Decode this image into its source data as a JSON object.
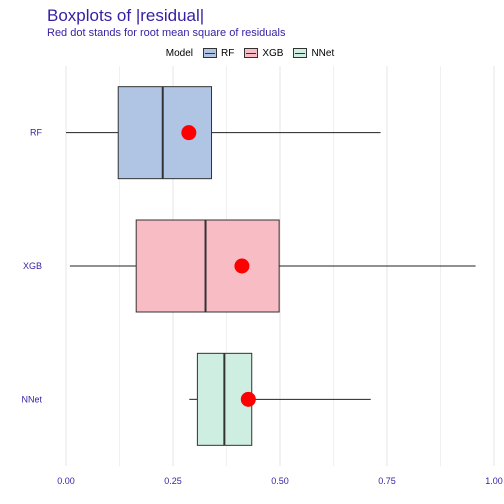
{
  "chart_data": {
    "type": "boxplot",
    "title": "Boxplots of |residual|",
    "subtitle": "Red dot stands for root mean square of residuals",
    "legend": {
      "title": "Model",
      "placement": "top",
      "items": [
        {
          "label": "RF",
          "color": "#b0c4e4"
        },
        {
          "label": "XGB",
          "color": "#f7bcc4"
        },
        {
          "label": "NNet",
          "color": "#cdeee0"
        }
      ]
    },
    "xlim": [
      -0.05,
      1.0
    ],
    "xticks": [
      0.0,
      0.25,
      0.5,
      0.75,
      1.0
    ],
    "xtick_labels": [
      "0.00",
      "0.25",
      "0.50",
      "0.75",
      "1.00"
    ],
    "grid": true,
    "series": [
      {
        "name": "RF",
        "whisker_low": 0.0,
        "q1": 0.122,
        "median": 0.226,
        "q3": 0.34,
        "whisker_high": 0.735,
        "rmse": 0.287,
        "color": "#b0c4e4"
      },
      {
        "name": "XGB",
        "whisker_low": 0.009,
        "q1": 0.164,
        "median": 0.326,
        "q3": 0.498,
        "whisker_high": 0.957,
        "rmse": 0.411,
        "color": "#f7bcc4"
      },
      {
        "name": "NNet",
        "whisker_low": 0.288,
        "q1": 0.307,
        "median": 0.37,
        "q3": 0.434,
        "whisker_high": 0.712,
        "rmse": 0.426,
        "color": "#cdeee0"
      }
    ],
    "colors": {
      "dot": "#ff0000",
      "axis_text": "#371ea3",
      "grid": "#e5e5e5"
    }
  }
}
